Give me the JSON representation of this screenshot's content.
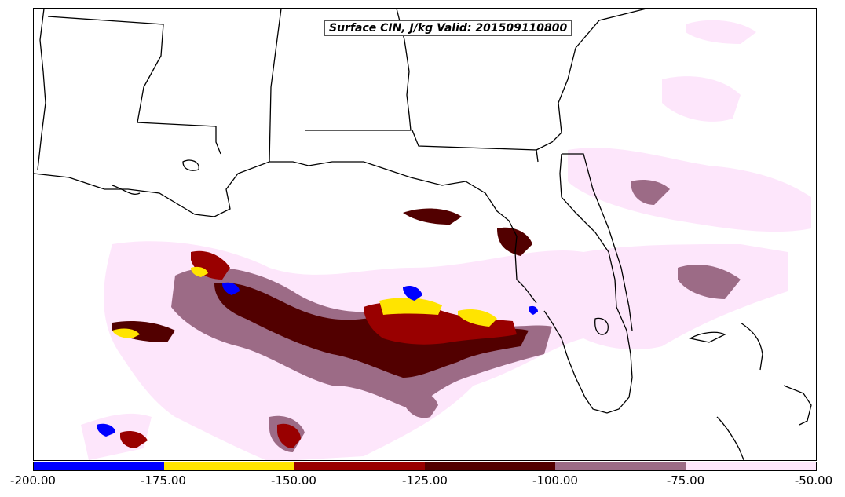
{
  "title": "Surface CIN, J/kg Valid: 201509110800",
  "colorbar": {
    "ticks": [
      "-200.00",
      "-175.00",
      "-150.00",
      "-125.00",
      "-100.00",
      "-75.00",
      "-50.00"
    ],
    "colors": [
      "#0000ff",
      "#ffe400",
      "#990000",
      "#520000",
      "#9c6b86",
      "#fde6fb"
    ]
  },
  "colors": {
    "land_lines": "#000000",
    "light_pink": "#fde6fb",
    "mauve": "#9c6b86",
    "dark_red": "#520000",
    "red": "#990000",
    "yellow": "#ffe400",
    "blue": "#0000ff"
  }
}
